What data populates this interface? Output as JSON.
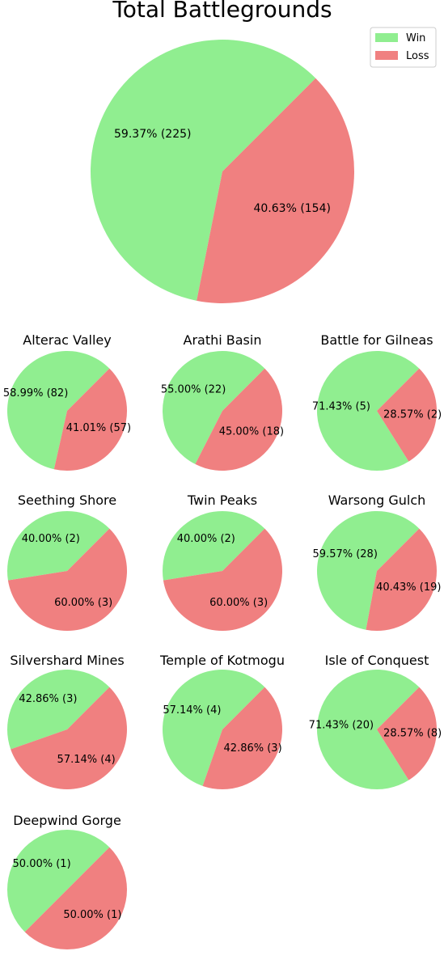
{
  "legend": {
    "placement": "top-right",
    "entries": [
      {
        "label": "Win",
        "color": "#90ee90"
      },
      {
        "label": "Loss",
        "color": "#f08080"
      }
    ]
  },
  "chart_data": [
    {
      "type": "pie",
      "title": "Total Battlegrounds",
      "categories": [
        "Win",
        "Loss"
      ],
      "values": [
        225,
        154
      ],
      "labels": [
        "59.37% (225)",
        "40.63% (154)"
      ],
      "colors": [
        "#90ee90",
        "#f08080"
      ]
    },
    {
      "type": "pie",
      "title": "Alterac Valley",
      "categories": [
        "Win",
        "Loss"
      ],
      "values": [
        82,
        57
      ],
      "labels": [
        "58.99% (82)",
        "41.01% (57)"
      ],
      "colors": [
        "#90ee90",
        "#f08080"
      ]
    },
    {
      "type": "pie",
      "title": "Arathi Basin",
      "categories": [
        "Win",
        "Loss"
      ],
      "values": [
        22,
        18
      ],
      "labels": [
        "55.00% (22)",
        "45.00% (18)"
      ],
      "colors": [
        "#90ee90",
        "#f08080"
      ]
    },
    {
      "type": "pie",
      "title": "Battle for Gilneas",
      "categories": [
        "Win",
        "Loss"
      ],
      "values": [
        5,
        2
      ],
      "labels": [
        "71.43% (5)",
        "28.57% (2)"
      ],
      "colors": [
        "#90ee90",
        "#f08080"
      ]
    },
    {
      "type": "pie",
      "title": "Seething Shore",
      "categories": [
        "Win",
        "Loss"
      ],
      "values": [
        2,
        3
      ],
      "labels": [
        "40.00% (2)",
        "60.00% (3)"
      ],
      "colors": [
        "#90ee90",
        "#f08080"
      ]
    },
    {
      "type": "pie",
      "title": "Twin Peaks",
      "categories": [
        "Win",
        "Loss"
      ],
      "values": [
        2,
        3
      ],
      "labels": [
        "40.00% (2)",
        "60.00% (3)"
      ],
      "colors": [
        "#90ee90",
        "#f08080"
      ]
    },
    {
      "type": "pie",
      "title": "Warsong Gulch",
      "categories": [
        "Win",
        "Loss"
      ],
      "values": [
        28,
        19
      ],
      "labels": [
        "59.57% (28)",
        "40.43% (19)"
      ],
      "colors": [
        "#90ee90",
        "#f08080"
      ]
    },
    {
      "type": "pie",
      "title": "Silvershard Mines",
      "categories": [
        "Win",
        "Loss"
      ],
      "values": [
        3,
        4
      ],
      "labels": [
        "42.86% (3)",
        "57.14% (4)"
      ],
      "colors": [
        "#90ee90",
        "#f08080"
      ]
    },
    {
      "type": "pie",
      "title": "Temple of Kotmogu",
      "categories": [
        "Win",
        "Loss"
      ],
      "values": [
        4,
        3
      ],
      "labels": [
        "57.14% (4)",
        "42.86% (3)"
      ],
      "colors": [
        "#90ee90",
        "#f08080"
      ]
    },
    {
      "type": "pie",
      "title": "Isle of Conquest",
      "categories": [
        "Win",
        "Loss"
      ],
      "values": [
        20,
        8
      ],
      "labels": [
        "71.43% (20)",
        "28.57% (8)"
      ],
      "colors": [
        "#90ee90",
        "#f08080"
      ]
    },
    {
      "type": "pie",
      "title": "Deepwind Gorge",
      "categories": [
        "Win",
        "Loss"
      ],
      "values": [
        1,
        1
      ],
      "labels": [
        "50.00% (1)",
        "50.00% (1)"
      ],
      "colors": [
        "#90ee90",
        "#f08080"
      ]
    }
  ]
}
